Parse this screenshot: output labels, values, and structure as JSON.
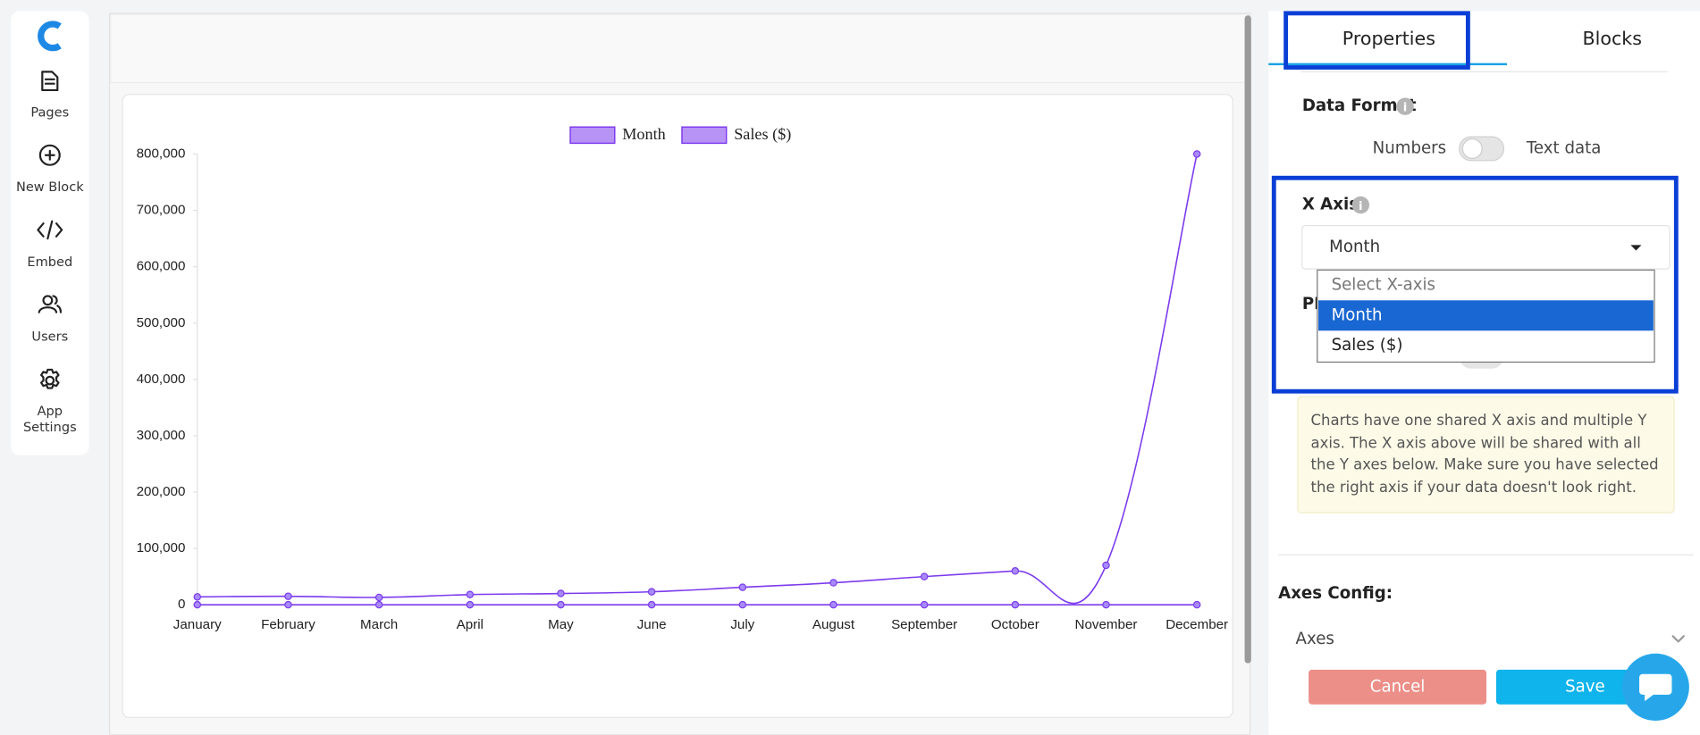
{
  "sidebar": {
    "items": [
      "Pages",
      "New Block",
      "Embed",
      "Users",
      "App Settings"
    ]
  },
  "chart_data": {
    "type": "line",
    "categories": [
      "January",
      "February",
      "March",
      "April",
      "May",
      "June",
      "July",
      "August",
      "September",
      "October",
      "November",
      "December"
    ],
    "series": [
      {
        "name": "Month",
        "color": "#7c3aed",
        "values": [
          0,
          0,
          0,
          0,
          0,
          0,
          0,
          0,
          0,
          0,
          0,
          0
        ]
      },
      {
        "name": "Sales ($)",
        "color": "#7c3aed",
        "values": [
          14000,
          15000,
          13000,
          18000,
          20000,
          23000,
          31000,
          39000,
          50000,
          60000,
          70000,
          800000
        ]
      }
    ],
    "ylim": [
      0,
      800000
    ],
    "yticks": [
      0,
      {
        "value": 100000,
        "label": "100,000"
      },
      {
        "value": 200000,
        "label": "200,000"
      },
      {
        "value": 300000,
        "label": "300,000"
      },
      {
        "value": 400000,
        "label": "400,000"
      },
      {
        "value": 500000,
        "label": "500,000"
      },
      {
        "value": 600000,
        "label": "600,000"
      },
      {
        "value": 700000,
        "label": "700,000"
      },
      {
        "value": 800000,
        "label": "800,000"
      }
    ],
    "legend": "top"
  },
  "panel": {
    "tabs": [
      "Properties",
      "Blocks"
    ],
    "data_format": {
      "label": "Data Format",
      "off": "Numbers",
      "on": "Text data"
    },
    "x_axis": {
      "label": "X Axis",
      "selected": "Month",
      "options": [
        "Select X-axis",
        "Month",
        "Sales ($)"
      ]
    },
    "hidden_label": "PD",
    "note": "Charts have one shared X axis and multiple Y axis. The X axis above will be shared with all the Y axes below. Make sure you have selected the right axis if your data doesn't look right.",
    "axes_config": "Axes Config:",
    "axes": "Axes",
    "buttons": {
      "cancel": "Cancel",
      "save": "Save"
    }
  }
}
